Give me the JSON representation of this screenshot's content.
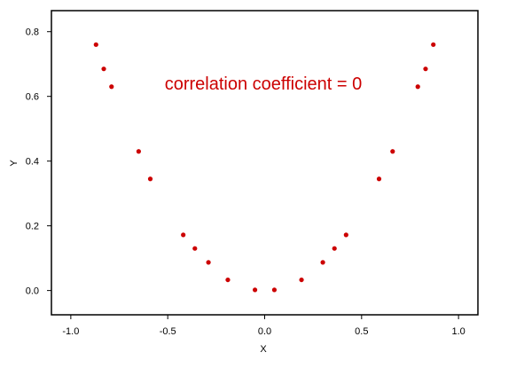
{
  "chart_data": {
    "type": "scatter",
    "title": "",
    "xlabel": "X",
    "ylabel": "Y",
    "xlim": [
      -1.1,
      1.1
    ],
    "ylim": [
      -0.075,
      0.865
    ],
    "xticks": [
      -1.0,
      -0.5,
      0.0,
      0.5,
      1.0
    ],
    "xtick_labels": [
      "-1.0",
      "-0.5",
      "0.0",
      "0.5",
      "1.0"
    ],
    "yticks": [
      0.0,
      0.2,
      0.4,
      0.6,
      0.8
    ],
    "ytick_labels": [
      "0.0",
      "0.2",
      "0.4",
      "0.6",
      "0.8"
    ],
    "grid": false,
    "annotation": "correlation coefficient = 0",
    "colors": {
      "points": "#cc0000",
      "annotation": "#cc0000",
      "axes": "#000000"
    },
    "series": [
      {
        "x": [
          -0.87,
          -0.83,
          -0.79,
          -0.65,
          -0.59,
          -0.42,
          -0.36,
          -0.29,
          -0.19,
          -0.05,
          0.05,
          0.19,
          0.3,
          0.36,
          0.42,
          0.59,
          0.66,
          0.79,
          0.83,
          0.87
        ],
        "y": [
          0.76,
          0.685,
          0.63,
          0.43,
          0.345,
          0.172,
          0.13,
          0.087,
          0.033,
          0.002,
          0.002,
          0.033,
          0.087,
          0.13,
          0.172,
          0.345,
          0.43,
          0.63,
          0.685,
          0.76
        ]
      }
    ]
  }
}
